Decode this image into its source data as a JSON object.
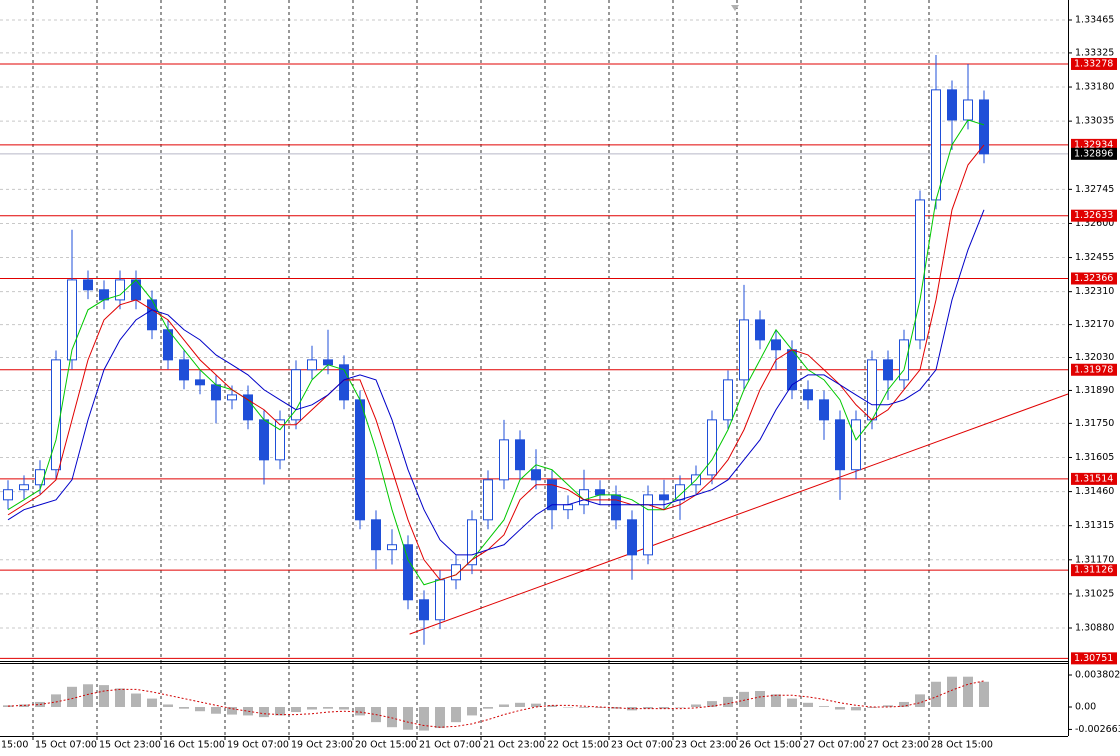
{
  "chart_data": [
    {
      "type": "candlestick",
      "open": [
        1.31425,
        1.31468,
        1.31489,
        1.31553,
        1.3202,
        1.3236,
        1.32318,
        1.32275,
        1.3236,
        1.32275,
        1.32148,
        1.3202,
        1.31935,
        1.31914,
        1.3185,
        1.31871,
        1.31765,
        1.31595,
        1.31765,
        1.31978,
        1.3202,
        1.31999,
        1.3185,
        1.3134,
        1.31213,
        1.31234,
        1.31,
        1.30915,
        1.31085,
        1.31149,
        1.3134,
        1.3151,
        1.3168,
        1.31553,
        1.3151,
        1.31383,
        1.31404,
        1.31468,
        1.31446,
        1.3134,
        1.31191,
        1.31446,
        1.31425,
        1.31489,
        1.31531,
        1.31765,
        1.31935,
        1.3219,
        1.32105,
        1.32063,
        1.31893,
        1.3185,
        1.31765,
        1.31553,
        1.31765,
        1.3202,
        1.31935,
        1.32105,
        1.327,
        1.33168,
        1.3304,
        1.33125
      ],
      "high": [
        1.31508,
        1.31529,
        1.31593,
        1.3206,
        1.32573,
        1.324,
        1.32358,
        1.324,
        1.324,
        1.32315,
        1.32188,
        1.3206,
        1.31975,
        1.31954,
        1.31911,
        1.31911,
        1.31805,
        1.31805,
        1.32018,
        1.3208,
        1.32148,
        1.32039,
        1.3189,
        1.3138,
        1.313,
        1.31274,
        1.3104,
        1.31125,
        1.31189,
        1.3138,
        1.3155,
        1.31765,
        1.3172,
        1.3164,
        1.3155,
        1.31444,
        1.31553,
        1.31508,
        1.31486,
        1.3138,
        1.31486,
        1.3151,
        1.31529,
        1.31571,
        1.31805,
        1.31975,
        1.32339,
        1.3223,
        1.32145,
        1.32103,
        1.31933,
        1.3189,
        1.31805,
        1.31805,
        1.3206,
        1.3206,
        1.32148,
        1.3274,
        1.33316,
        1.33208,
        1.33278,
        1.33165
      ],
      "low": [
        1.31385,
        1.31428,
        1.31449,
        1.31513,
        1.3198,
        1.32278,
        1.32235,
        1.32235,
        1.32235,
        1.32108,
        1.3198,
        1.31895,
        1.31874,
        1.3175,
        1.3181,
        1.31725,
        1.3149,
        1.31555,
        1.31725,
        1.31938,
        1.31959,
        1.3181,
        1.313,
        1.3113,
        1.3115,
        1.3096,
        1.30809,
        1.30875,
        1.31045,
        1.31109,
        1.313,
        1.3147,
        1.31513,
        1.3147,
        1.313,
        1.31343,
        1.31364,
        1.31406,
        1.313,
        1.31085,
        1.31151,
        1.31385,
        1.3134,
        1.31449,
        1.31491,
        1.31725,
        1.31895,
        1.32065,
        1.31978,
        1.31853,
        1.3181,
        1.3168,
        1.31425,
        1.31513,
        1.31725,
        1.3185,
        1.31895,
        1.32065,
        1.3266,
        1.32913,
        1.33,
        1.32856
      ],
      "close": [
        1.31468,
        1.31489,
        1.31553,
        1.3202,
        1.3236,
        1.32318,
        1.32275,
        1.3236,
        1.32275,
        1.32148,
        1.3202,
        1.31935,
        1.31914,
        1.3185,
        1.31871,
        1.31765,
        1.31595,
        1.31765,
        1.31978,
        1.3202,
        1.31999,
        1.3185,
        1.3134,
        1.31213,
        1.31234,
        1.31,
        1.30915,
        1.31085,
        1.31149,
        1.3134,
        1.3151,
        1.3168,
        1.31553,
        1.3151,
        1.31383,
        1.31404,
        1.31468,
        1.31446,
        1.3134,
        1.31191,
        1.31446,
        1.31425,
        1.31489,
        1.31531,
        1.31765,
        1.31935,
        1.3219,
        1.32105,
        1.32063,
        1.31893,
        1.3185,
        1.31765,
        1.31553,
        1.31765,
        1.3202,
        1.31935,
        1.32105,
        1.327,
        1.33168,
        1.3304,
        1.33125,
        1.32896
      ],
      "color": "#1f4fd8",
      "series": [
        {
          "color": "#00c800",
          "values": [
            1.31383,
            1.31425,
            1.31468,
            1.3168,
            1.32063,
            1.32233,
            1.32275,
            1.32296,
            1.3236,
            1.32275,
            1.32148,
            1.32063,
            1.31978,
            1.31914,
            1.31893,
            1.3185,
            1.31765,
            1.31723,
            1.31808,
            1.31935,
            1.31999,
            1.31978,
            1.3185,
            1.31638,
            1.31383,
            1.3117,
            1.31064,
            1.31085,
            1.31106,
            1.3117,
            1.31255,
            1.3134,
            1.3151,
            1.31574,
            1.31553,
            1.31489,
            1.31425,
            1.31446,
            1.31446,
            1.31425,
            1.31383,
            1.31383,
            1.31446,
            1.3151,
            1.31595,
            1.31723,
            1.31893,
            1.3202,
            1.32148,
            1.32063,
            1.31978,
            1.31935,
            1.3185,
            1.3168,
            1.31765,
            1.31893,
            1.31978,
            1.32275,
            1.327,
            1.32934,
            1.3304,
            1.33019
          ]
        },
        {
          "color": "#e00000",
          "values": [
            1.31361,
            1.31404,
            1.31446,
            1.3151,
            1.31765,
            1.3202,
            1.3219,
            1.32254,
            1.32275,
            1.32233,
            1.3219,
            1.32105,
            1.3202,
            1.31956,
            1.31893,
            1.3185,
            1.31808,
            1.31744,
            1.31744,
            1.31808,
            1.31871,
            1.31935,
            1.31935,
            1.31765,
            1.31553,
            1.3134,
            1.3117,
            1.31085,
            1.31106,
            1.3117,
            1.31213,
            1.31276,
            1.31425,
            1.31489,
            1.31489,
            1.31468,
            1.31425,
            1.31425,
            1.31425,
            1.31404,
            1.31404,
            1.31383,
            1.31404,
            1.31446,
            1.3151,
            1.31595,
            1.31723,
            1.31893,
            1.3202,
            1.32063,
            1.32041,
            1.31978,
            1.31914,
            1.31829,
            1.31765,
            1.31808,
            1.31893,
            1.31978,
            1.32275,
            1.32658,
            1.32849,
            1.32934
          ]
        },
        {
          "color": "#0000c8",
          "values": [
            1.3134,
            1.31383,
            1.31404,
            1.31425,
            1.3151,
            1.31765,
            1.31978,
            1.32105,
            1.3219,
            1.32233,
            1.32211,
            1.32148,
            1.32105,
            1.32041,
            1.31999,
            1.31956,
            1.31893,
            1.3185,
            1.31808,
            1.31829,
            1.31871,
            1.31935,
            1.31956,
            1.31935,
            1.31765,
            1.31553,
            1.31383,
            1.31255,
            1.31191,
            1.31191,
            1.31213,
            1.31234,
            1.31298,
            1.31361,
            1.31404,
            1.31404,
            1.31425,
            1.31404,
            1.31404,
            1.31404,
            1.31404,
            1.31404,
            1.31425,
            1.31446,
            1.31468,
            1.3151,
            1.31595,
            1.3168,
            1.31808,
            1.31914,
            1.31956,
            1.31956,
            1.31914,
            1.31871,
            1.31829,
            1.31829,
            1.3185,
            1.31893,
            1.31978,
            1.32275,
            1.32488,
            1.32658
          ]
        }
      ],
      "xlim": [
        -0.5,
        66.25
      ],
      "xticks": [
        {
          "value": -0.5625,
          "label": "15:00"
        },
        {
          "value": 1.5625,
          "label": "15 Oct 07:00"
        },
        {
          "value": 5.5625,
          "label": "15 Oct 23:00"
        },
        {
          "value": 9.5625,
          "label": "16 Oct 15:00"
        },
        {
          "value": 13.5625,
          "label": "19 Oct 07:00"
        },
        {
          "value": 17.5625,
          "label": "19 Oct 23:00"
        },
        {
          "value": 21.5625,
          "label": "20 Oct 15:00"
        },
        {
          "value": 25.5625,
          "label": "21 Oct 07:00"
        },
        {
          "value": 29.5625,
          "label": "21 Oct 23:00"
        },
        {
          "value": 33.5625,
          "label": "22 Oct 15:00"
        },
        {
          "value": 37.5625,
          "label": "23 Oct 07:00"
        },
        {
          "value": 41.5625,
          "label": "23 Oct 23:00"
        },
        {
          "value": 45.5625,
          "label": "26 Oct 15:00"
        },
        {
          "value": 49.5625,
          "label": "27 Oct 07:00"
        },
        {
          "value": 53.5625,
          "label": "27 Oct 23:00"
        },
        {
          "value": 57.5625,
          "label": "28 Oct 15:00"
        }
      ],
      "ylim": [
        1.30744,
        1.3355
      ],
      "yticks": [
        1.33465,
        1.33325,
        {
          "value": 1.3318,
          "label": "1.33180"
        },
        1.33035,
        1.32745,
        {
          "value": 1.326,
          "label": "1.32600"
        },
        1.32455,
        {
          "value": 1.3231,
          "label": "1.32310"
        },
        {
          "value": 1.3217,
          "label": "1.32170"
        },
        {
          "value": 1.3203,
          "label": "1.32030"
        },
        {
          "value": 1.3189,
          "label": "1.31890"
        },
        {
          "value": 1.3175,
          "label": "1.31750"
        },
        1.31605,
        {
          "value": 1.3146,
          "label": "1.31460"
        },
        1.31315,
        {
          "value": 1.3117,
          "label": "1.31170"
        },
        1.31025,
        {
          "value": 1.3088,
          "label": "1.30880"
        }
      ],
      "grid": true,
      "levels": [
        1.33278,
        1.32934,
        1.32633,
        1.32366,
        1.31978,
        1.31514,
        1.31126,
        1.30751
      ],
      "level_color": "#e00000",
      "current_price": 1.32896,
      "trendline": {
        "x": [
          25.1,
          66.25
        ],
        "y": [
          1.30854,
          1.31875
        ],
        "color": "#e00000"
      }
    },
    {
      "type": "oscillator",
      "values": [
        0.0002,
        0.0003,
        0.0006,
        0.0015,
        0.0024,
        0.0027,
        0.0026,
        0.0022,
        0.0016,
        0.001,
        0.0003,
        -0.0002,
        -0.0005,
        -0.0008,
        -0.0009,
        -0.001,
        -0.0012,
        -0.001,
        -0.0006,
        -0.0003,
        -0.0002,
        -0.0003,
        -0.001,
        -0.0018,
        -0.0024,
        -0.0027,
        -0.0028,
        -0.0025,
        -0.0018,
        -0.001,
        -0.0002,
        0.0003,
        0.0005,
        0.0004,
        0.0002,
        0,
        -0.0001,
        -0.0001,
        -0.0002,
        -0.0004,
        -0.0002,
        -0.0002,
        0,
        0.0003,
        0.0007,
        0.0012,
        0.0018,
        0.0019,
        0.0015,
        0.001,
        0.0005,
        0.0001,
        -0.0003,
        -0.0004,
        -0.0001,
        0.0002,
        0.0006,
        0.0015,
        0.003,
        0.0036,
        0.0036,
        0.003
      ],
      "color": "#b4b4b4",
      "signal": {
        "color": "#d00000",
        "values": [
          0.0001,
          0.0002,
          0.0003,
          0.0006,
          0.001,
          0.0015,
          0.0019,
          0.0021,
          0.0021,
          0.0018,
          0.0014,
          0.001,
          0.0006,
          0.0002,
          -0.0002,
          -0.0005,
          -0.0008,
          -0.0009,
          -0.0009,
          -0.0008,
          -0.0006,
          -0.0005,
          -0.0006,
          -0.0009,
          -0.0013,
          -0.0018,
          -0.0022,
          -0.0024,
          -0.0023,
          -0.002,
          -0.0015,
          -0.0009,
          -0.0004,
          0,
          0.0002,
          0.0002,
          0.0001,
          0,
          -0.0001,
          -0.0002,
          -0.0002,
          -0.0002,
          -0.0002,
          -0.0001,
          0.0001,
          0.0004,
          0.0008,
          0.0012,
          0.0014,
          0.0014,
          0.0012,
          0.0009,
          0.0005,
          0.0002,
          0,
          0,
          0.0001,
          0.0005,
          0.0012,
          0.002,
          0.0027,
          0.0031
        ]
      },
      "xlim": [
        -0.5,
        66.25
      ],
      "ylim": [
        -0.003445,
        0.005109
      ],
      "yticks": [
        0.003802,
        {
          "value": 0,
          "label": "0.00"
        },
        -0.002663
      ]
    }
  ]
}
